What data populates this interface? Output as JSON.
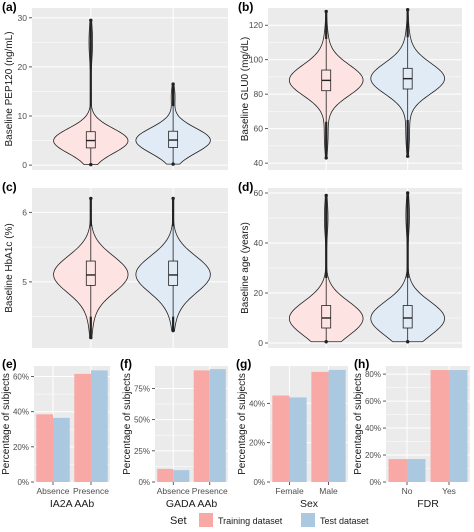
{
  "colors": {
    "training": "#f8a9a5",
    "test": "#aac8e0",
    "training_fill": "#fde3e1",
    "test_fill": "#e1ebf5",
    "panel_bg": "#ebebeb",
    "grid": "#ffffff",
    "outline": "#222222"
  },
  "legend": {
    "title": "Set",
    "items": [
      "Training dataset",
      "Test dataset"
    ],
    "position": "bottom"
  },
  "chart_data": [
    {
      "panel": "(a)",
      "type": "violin",
      "ylabel": "Baseline PEP120 (ng/mL)",
      "ylim": [
        -1,
        32
      ],
      "yticks": [
        0,
        10,
        20,
        30
      ],
      "series": [
        {
          "name": "Training dataset",
          "median": 5.0,
          "q1": 3.5,
          "q3": 6.8,
          "whisker_low": 0.2,
          "whisker_high": 12,
          "min": 0.1,
          "max": 29.5
        },
        {
          "name": "Test dataset",
          "median": 5.1,
          "q1": 3.6,
          "q3": 6.9,
          "whisker_low": 0.3,
          "whisker_high": 12,
          "min": 0.2,
          "max": 16.5
        }
      ]
    },
    {
      "panel": "(b)",
      "type": "violin",
      "ylabel": "Baseline GLU0 (mg/dL)",
      "ylim": [
        36,
        130
      ],
      "yticks": [
        40,
        60,
        80,
        100,
        120
      ],
      "series": [
        {
          "name": "Training dataset",
          "median": 88,
          "q1": 82,
          "q3": 94,
          "whisker_low": 64,
          "whisker_high": 112,
          "min": 43,
          "max": 128
        },
        {
          "name": "Test dataset",
          "median": 89,
          "q1": 83,
          "q3": 95,
          "whisker_low": 65,
          "whisker_high": 113,
          "min": 44,
          "max": 129
        }
      ]
    },
    {
      "panel": "(c)",
      "type": "violin",
      "ylabel": "Baseline HbA1c (%)",
      "ylim": [
        4.05,
        6.35
      ],
      "yticks": [
        4,
        5,
        6
      ],
      "series": [
        {
          "name": "Training dataset",
          "median": 5.1,
          "q1": 4.95,
          "q3": 5.3,
          "whisker_low": 4.5,
          "whisker_high": 5.8,
          "min": 4.2,
          "max": 6.2
        },
        {
          "name": "Test dataset",
          "median": 5.1,
          "q1": 4.95,
          "q3": 5.3,
          "whisker_low": 4.5,
          "whisker_high": 5.8,
          "min": 4.3,
          "max": 6.2
        }
      ]
    },
    {
      "panel": "(d)",
      "type": "violin",
      "ylabel": "Baseline age (years)",
      "ylim": [
        -2,
        62
      ],
      "yticks": [
        0,
        20,
        40,
        60
      ],
      "series": [
        {
          "name": "Training dataset",
          "median": 10,
          "q1": 6,
          "q3": 15,
          "whisker_low": 1,
          "whisker_high": 26,
          "min": 0.5,
          "max": 59
        },
        {
          "name": "Test dataset",
          "median": 10,
          "q1": 6,
          "q3": 15,
          "whisker_low": 1,
          "whisker_high": 26,
          "min": 0.5,
          "max": 60
        }
      ]
    },
    {
      "panel": "(e)",
      "type": "bar",
      "xlabel": "IA2A AAb",
      "ylabel": "Percentage of subjects",
      "categories": [
        "Absence",
        "Presence"
      ],
      "ylim": [
        0,
        66
      ],
      "yticks": [
        0,
        20,
        40,
        60
      ],
      "ytick_labels": [
        "0%",
        "20%",
        "40%",
        "60%"
      ],
      "series": [
        {
          "name": "Training dataset",
          "values": [
            38.5,
            61.5
          ]
        },
        {
          "name": "Test dataset",
          "values": [
            36.5,
            63.5
          ]
        }
      ]
    },
    {
      "panel": "(f)",
      "type": "bar",
      "xlabel": "GADA AAb",
      "ylabel": "Percentage of subjects",
      "categories": [
        "Absence",
        "Presence"
      ],
      "ylim": [
        0,
        93
      ],
      "yticks": [
        0,
        25,
        50,
        75
      ],
      "ytick_labels": [
        "0%",
        "25%",
        "50%",
        "75%"
      ],
      "series": [
        {
          "name": "Training dataset",
          "values": [
            10.5,
            89.5
          ]
        },
        {
          "name": "Test dataset",
          "values": [
            9.5,
            90.5
          ]
        }
      ]
    },
    {
      "panel": "(g)",
      "type": "bar",
      "xlabel": "Sex",
      "ylabel": "Percentage of subjects",
      "categories": [
        "Female",
        "Male"
      ],
      "ylim": [
        0,
        59
      ],
      "yticks": [
        0,
        20,
        40
      ],
      "ytick_labels": [
        "0%",
        "20%",
        "40%"
      ],
      "series": [
        {
          "name": "Training dataset",
          "values": [
            44,
            56
          ]
        },
        {
          "name": "Test dataset",
          "values": [
            43,
            57
          ]
        }
      ]
    },
    {
      "panel": "(h)",
      "type": "bar",
      "xlabel": "FDR",
      "ylabel": "Percentage of subjects",
      "categories": [
        "No",
        "Yes"
      ],
      "ylim": [
        0,
        86
      ],
      "yticks": [
        0,
        20,
        40,
        60,
        80
      ],
      "ytick_labels": [
        "0%",
        "20%",
        "40%",
        "60%",
        "80%"
      ],
      "series": [
        {
          "name": "Training dataset",
          "values": [
            17,
            83
          ]
        },
        {
          "name": "Test dataset",
          "values": [
            17,
            83
          ]
        }
      ]
    }
  ]
}
